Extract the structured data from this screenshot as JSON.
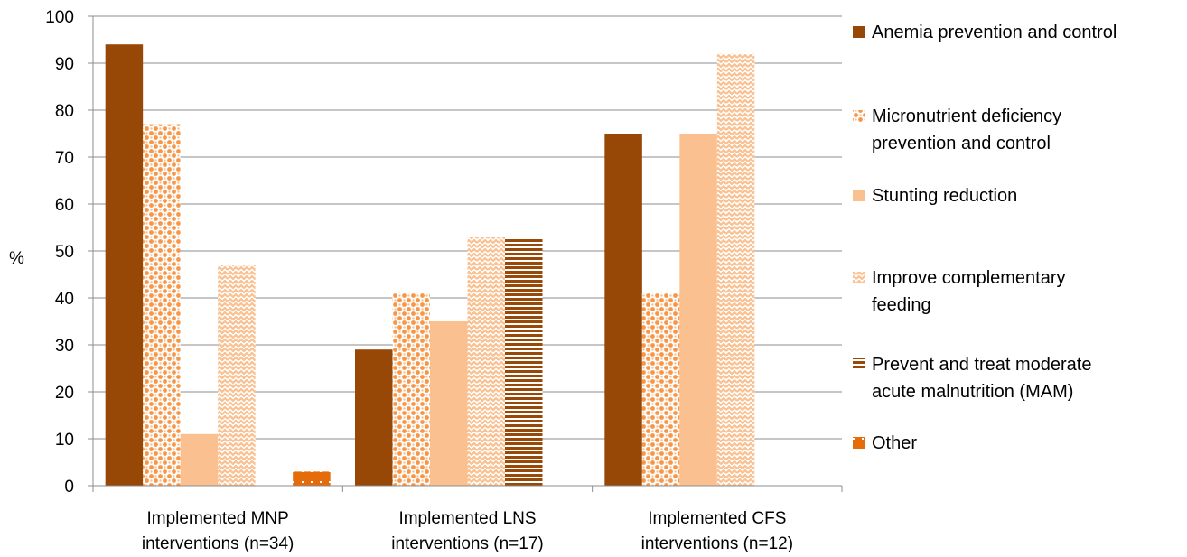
{
  "chart_data": {
    "type": "bar",
    "title": "",
    "xlabel": "",
    "ylabel": "%",
    "ylim": [
      0,
      100
    ],
    "yticks": [
      0,
      10,
      20,
      30,
      40,
      50,
      60,
      70,
      80,
      90,
      100
    ],
    "grid": true,
    "legend_position": "right",
    "categories": [
      [
        "Implemented MNP",
        "interventions (n=34)"
      ],
      [
        "Implemented LNS",
        "interventions (n=17)"
      ],
      [
        "Implemented CFS",
        "interventions (n=12)"
      ]
    ],
    "series": [
      {
        "name": [
          "Anemia prevention and control"
        ],
        "values": [
          94,
          29,
          75
        ],
        "color": "#974706",
        "pattern": "solid"
      },
      {
        "name": [
          "Micronutrient deficiency",
          "prevention and control"
        ],
        "values": [
          77,
          41,
          41
        ],
        "color": "#F79646",
        "pattern": "dots"
      },
      {
        "name": [
          "Stunting reduction"
        ],
        "values": [
          11,
          35,
          75
        ],
        "color": "#FAC090",
        "pattern": "solid"
      },
      {
        "name": [
          "Improve complementary",
          "feeding"
        ],
        "values": [
          47,
          53,
          92
        ],
        "color": "#FAC090",
        "pattern": "zigzag"
      },
      {
        "name": [
          "Prevent and treat moderate",
          "acute malnutrition (MAM)"
        ],
        "values": [
          0,
          53,
          0
        ],
        "color": "#984807",
        "pattern": "hlines"
      },
      {
        "name": [
          "Other"
        ],
        "values": [
          3,
          0,
          0
        ],
        "color": "#E46C0A",
        "pattern": "sparse"
      }
    ]
  }
}
